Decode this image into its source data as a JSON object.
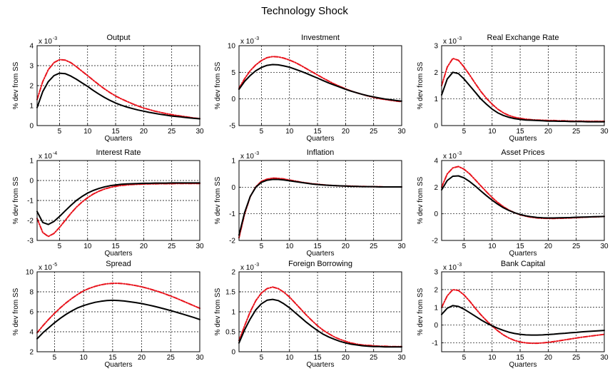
{
  "figure": {
    "title": "Technology Shock"
  },
  "series_styles": {
    "baseline": {
      "color": "#000000",
      "dash": ""
    },
    "alternative": {
      "color": "#e8121b",
      "dash": "6 2 1.5 2"
    }
  },
  "chart_data": [
    {
      "type": "line",
      "title": "Output",
      "xlabel": "Quarters",
      "ylabel": "% dev from SS",
      "exponent_base": "x 10",
      "exponent": "-3",
      "xlim": [
        1,
        30
      ],
      "ylim": [
        0,
        4
      ],
      "xticks": [
        5,
        10,
        15,
        20,
        25,
        30
      ],
      "yticks": [
        0,
        1,
        2,
        3,
        4
      ],
      "x": [
        1,
        2,
        3,
        4,
        5,
        6,
        7,
        8,
        9,
        10,
        11,
        12,
        13,
        14,
        15,
        16,
        17,
        18,
        19,
        20,
        21,
        22,
        23,
        24,
        25,
        26,
        27,
        28,
        29,
        30
      ],
      "series": [
        {
          "values": [
            0.9,
            1.7,
            2.2,
            2.5,
            2.62,
            2.6,
            2.48,
            2.32,
            2.14,
            1.96,
            1.76,
            1.58,
            1.41,
            1.26,
            1.13,
            1.02,
            0.93,
            0.85,
            0.78,
            0.72,
            0.66,
            0.61,
            0.56,
            0.52,
            0.48,
            0.45,
            0.42,
            0.39,
            0.36,
            0.34
          ]
        },
        {
          "values": [
            1.3,
            2.2,
            2.8,
            3.15,
            3.3,
            3.28,
            3.15,
            2.95,
            2.72,
            2.5,
            2.27,
            2.05,
            1.84,
            1.65,
            1.48,
            1.34,
            1.21,
            1.09,
            0.98,
            0.88,
            0.8,
            0.72,
            0.66,
            0.6,
            0.55,
            0.5,
            0.46,
            0.42,
            0.38,
            0.35
          ]
        }
      ]
    },
    {
      "type": "line",
      "title": "Investment",
      "xlabel": "Quarters",
      "ylabel": "% dev from SS",
      "exponent_base": "x 10",
      "exponent": "-3",
      "xlim": [
        1,
        30
      ],
      "ylim": [
        -5,
        10
      ],
      "xticks": [
        5,
        10,
        15,
        20,
        25,
        30
      ],
      "yticks": [
        -5,
        0,
        5,
        10
      ],
      "x": [
        1,
        2,
        3,
        4,
        5,
        6,
        7,
        8,
        9,
        10,
        11,
        12,
        13,
        14,
        15,
        16,
        17,
        18,
        19,
        20,
        21,
        22,
        23,
        24,
        25,
        26,
        27,
        28,
        29,
        30
      ],
      "series": [
        {
          "values": [
            1.8,
            3.3,
            4.4,
            5.3,
            5.9,
            6.3,
            6.45,
            6.4,
            6.2,
            5.95,
            5.6,
            5.2,
            4.8,
            4.35,
            3.9,
            3.45,
            3.0,
            2.6,
            2.2,
            1.8,
            1.45,
            1.15,
            0.85,
            0.6,
            0.38,
            0.18,
            0.0,
            -0.15,
            -0.3,
            -0.4
          ]
        },
        {
          "values": [
            2.0,
            3.8,
            5.3,
            6.4,
            7.2,
            7.75,
            7.95,
            7.9,
            7.65,
            7.3,
            6.85,
            6.3,
            5.7,
            5.1,
            4.5,
            3.9,
            3.35,
            2.8,
            2.35,
            1.9,
            1.5,
            1.15,
            0.85,
            0.55,
            0.3,
            0.08,
            -0.1,
            -0.25,
            -0.4,
            -0.5
          ]
        }
      ]
    },
    {
      "type": "line",
      "title": "Real Exchange Rate",
      "xlabel": "Quarters",
      "ylabel": "% dev from SS",
      "exponent_base": "x 10",
      "exponent": "-3",
      "xlim": [
        1,
        30
      ],
      "ylim": [
        0,
        3
      ],
      "xticks": [
        5,
        10,
        15,
        20,
        25,
        30
      ],
      "yticks": [
        0,
        1,
        2,
        3
      ],
      "x": [
        1,
        2,
        3,
        4,
        5,
        6,
        7,
        8,
        9,
        10,
        11,
        12,
        13,
        14,
        15,
        16,
        17,
        18,
        19,
        20,
        21,
        22,
        23,
        24,
        25,
        26,
        27,
        28,
        29,
        30
      ],
      "series": [
        {
          "values": [
            1.15,
            1.75,
            2.0,
            1.95,
            1.75,
            1.5,
            1.25,
            1.0,
            0.8,
            0.62,
            0.48,
            0.38,
            0.31,
            0.26,
            0.23,
            0.21,
            0.2,
            0.19,
            0.18,
            0.17,
            0.17,
            0.16,
            0.16,
            0.15,
            0.15,
            0.15,
            0.14,
            0.14,
            0.14,
            0.14
          ]
        },
        {
          "values": [
            1.5,
            2.2,
            2.52,
            2.45,
            2.2,
            1.9,
            1.58,
            1.28,
            1.02,
            0.8,
            0.62,
            0.48,
            0.38,
            0.31,
            0.27,
            0.24,
            0.22,
            0.21,
            0.2,
            0.19,
            0.19,
            0.18,
            0.18,
            0.17,
            0.17,
            0.17,
            0.16,
            0.16,
            0.16,
            0.16
          ]
        }
      ]
    },
    {
      "type": "line",
      "title": "Interest Rate",
      "xlabel": "Quarters",
      "ylabel": "% dev from SS",
      "exponent_base": "x 10",
      "exponent": "-4",
      "xlim": [
        1,
        30
      ],
      "ylim": [
        -3,
        1
      ],
      "xticks": [
        5,
        10,
        15,
        20,
        25,
        30
      ],
      "yticks": [
        -3,
        -2,
        -1,
        0,
        1
      ],
      "x": [
        1,
        2,
        3,
        4,
        5,
        6,
        7,
        8,
        9,
        10,
        11,
        12,
        13,
        14,
        15,
        16,
        17,
        18,
        19,
        20,
        21,
        22,
        23,
        24,
        25,
        26,
        27,
        28,
        29,
        30
      ],
      "series": [
        {
          "values": [
            -1.55,
            -2.1,
            -2.2,
            -2.05,
            -1.8,
            -1.52,
            -1.25,
            -1.0,
            -0.8,
            -0.63,
            -0.5,
            -0.4,
            -0.32,
            -0.26,
            -0.22,
            -0.19,
            -0.17,
            -0.16,
            -0.15,
            -0.14,
            -0.14,
            -0.13,
            -0.13,
            -0.13,
            -0.12,
            -0.12,
            -0.12,
            -0.12,
            -0.12,
            -0.12
          ]
        },
        {
          "values": [
            -1.9,
            -2.6,
            -2.8,
            -2.65,
            -2.35,
            -2.0,
            -1.65,
            -1.34,
            -1.08,
            -0.86,
            -0.68,
            -0.54,
            -0.43,
            -0.35,
            -0.29,
            -0.25,
            -0.22,
            -0.2,
            -0.19,
            -0.18,
            -0.17,
            -0.17,
            -0.16,
            -0.16,
            -0.16,
            -0.15,
            -0.15,
            -0.15,
            -0.15,
            -0.15
          ]
        }
      ]
    },
    {
      "type": "line",
      "title": "Inflation",
      "xlabel": "Quarters",
      "ylabel": "% dev from SS",
      "exponent_base": "x 10",
      "exponent": "-3",
      "xlim": [
        1,
        30
      ],
      "ylim": [
        -2,
        1
      ],
      "xticks": [
        5,
        10,
        15,
        20,
        25,
        30
      ],
      "yticks": [
        -2,
        -1,
        0,
        1
      ],
      "x": [
        1,
        2,
        3,
        4,
        5,
        6,
        7,
        8,
        9,
        10,
        11,
        12,
        13,
        14,
        15,
        16,
        17,
        18,
        19,
        20,
        21,
        22,
        23,
        24,
        25,
        26,
        27,
        28,
        29,
        30
      ],
      "series": [
        {
          "values": [
            -1.8,
            -0.95,
            -0.35,
            0.0,
            0.18,
            0.26,
            0.29,
            0.29,
            0.27,
            0.24,
            0.21,
            0.18,
            0.15,
            0.12,
            0.1,
            0.08,
            0.07,
            0.06,
            0.05,
            0.04,
            0.03,
            0.03,
            0.02,
            0.02,
            0.02,
            0.01,
            0.01,
            0.01,
            0.01,
            0.01
          ]
        },
        {
          "values": [
            -1.9,
            -1.0,
            -0.36,
            0.02,
            0.22,
            0.3,
            0.34,
            0.33,
            0.31,
            0.27,
            0.23,
            0.19,
            0.16,
            0.13,
            0.11,
            0.09,
            0.07,
            0.06,
            0.05,
            0.04,
            0.04,
            0.03,
            0.03,
            0.02,
            0.02,
            0.02,
            0.01,
            0.01,
            0.01,
            0.01
          ]
        }
      ]
    },
    {
      "type": "line",
      "title": "Asset Prices",
      "xlabel": "Quarters",
      "ylabel": "% dev from SS",
      "exponent_base": "x 10",
      "exponent": "-3",
      "xlim": [
        1,
        30
      ],
      "ylim": [
        -2,
        4
      ],
      "xticks": [
        5,
        10,
        15,
        20,
        25,
        30
      ],
      "yticks": [
        -2,
        0,
        2,
        4
      ],
      "x": [
        1,
        2,
        3,
        4,
        5,
        6,
        7,
        8,
        9,
        10,
        11,
        12,
        13,
        14,
        15,
        16,
        17,
        18,
        19,
        20,
        21,
        22,
        23,
        24,
        25,
        26,
        27,
        28,
        29,
        30
      ],
      "series": [
        {
          "values": [
            1.8,
            2.5,
            2.82,
            2.85,
            2.7,
            2.42,
            2.08,
            1.72,
            1.36,
            1.02,
            0.72,
            0.46,
            0.25,
            0.08,
            -0.05,
            -0.15,
            -0.22,
            -0.27,
            -0.3,
            -0.31,
            -0.31,
            -0.3,
            -0.29,
            -0.28,
            -0.26,
            -0.25,
            -0.24,
            -0.22,
            -0.21,
            -0.2
          ]
        },
        {
          "values": [
            2.0,
            3.0,
            3.45,
            3.55,
            3.35,
            3.0,
            2.55,
            2.1,
            1.65,
            1.22,
            0.85,
            0.54,
            0.28,
            0.08,
            -0.07,
            -0.18,
            -0.26,
            -0.31,
            -0.34,
            -0.35,
            -0.35,
            -0.34,
            -0.33,
            -0.31,
            -0.29,
            -0.27,
            -0.25,
            -0.23,
            -0.22,
            -0.2
          ]
        }
      ]
    },
    {
      "type": "line",
      "title": "Spread",
      "xlabel": "Quarters",
      "ylabel": "% dev from SS",
      "exponent_base": "x 10",
      "exponent": "-5",
      "xlim": [
        2,
        30
      ],
      "ylim": [
        2,
        10
      ],
      "xticks": [
        5,
        10,
        15,
        20,
        25,
        30
      ],
      "yticks": [
        2,
        4,
        6,
        8,
        10
      ],
      "x": [
        2,
        3,
        4,
        5,
        6,
        7,
        8,
        9,
        10,
        11,
        12,
        13,
        14,
        15,
        16,
        17,
        18,
        19,
        20,
        21,
        22,
        23,
        24,
        25,
        26,
        27,
        28,
        29,
        30
      ],
      "series": [
        {
          "values": [
            3.3,
            3.9,
            4.4,
            4.9,
            5.35,
            5.75,
            6.1,
            6.4,
            6.62,
            6.8,
            6.95,
            7.05,
            7.12,
            7.15,
            7.13,
            7.08,
            7.0,
            6.92,
            6.82,
            6.7,
            6.57,
            6.43,
            6.28,
            6.12,
            5.95,
            5.78,
            5.6,
            5.42,
            5.23
          ]
        },
        {
          "values": [
            3.9,
            4.6,
            5.25,
            5.85,
            6.4,
            6.9,
            7.35,
            7.75,
            8.1,
            8.35,
            8.55,
            8.7,
            8.8,
            8.85,
            8.85,
            8.8,
            8.72,
            8.62,
            8.5,
            8.35,
            8.18,
            8.0,
            7.8,
            7.58,
            7.35,
            7.1,
            6.85,
            6.6,
            6.35
          ]
        }
      ]
    },
    {
      "type": "line",
      "title": "Foreign Borrowing",
      "xlabel": "Quarters",
      "ylabel": "% dev from SS",
      "exponent_base": "x 10",
      "exponent": "-3",
      "xlim": [
        1,
        30
      ],
      "ylim": [
        0,
        2
      ],
      "xticks": [
        5,
        10,
        15,
        20,
        25,
        30
      ],
      "yticks": [
        0,
        0.5,
        1,
        1.5,
        2
      ],
      "x": [
        1,
        2,
        3,
        4,
        5,
        6,
        7,
        8,
        9,
        10,
        11,
        12,
        13,
        14,
        15,
        16,
        17,
        18,
        19,
        20,
        21,
        22,
        23,
        24,
        25,
        26,
        27,
        28,
        29,
        30
      ],
      "series": [
        {
          "values": [
            0.22,
            0.55,
            0.82,
            1.05,
            1.2,
            1.29,
            1.31,
            1.28,
            1.2,
            1.1,
            0.98,
            0.86,
            0.74,
            0.63,
            0.53,
            0.44,
            0.37,
            0.31,
            0.26,
            0.22,
            0.19,
            0.17,
            0.15,
            0.14,
            0.13,
            0.13,
            0.12,
            0.12,
            0.12,
            0.12
          ]
        },
        {
          "values": [
            0.28,
            0.65,
            1.0,
            1.28,
            1.47,
            1.58,
            1.62,
            1.58,
            1.49,
            1.37,
            1.22,
            1.07,
            0.92,
            0.78,
            0.65,
            0.54,
            0.45,
            0.37,
            0.31,
            0.26,
            0.22,
            0.19,
            0.17,
            0.16,
            0.15,
            0.14,
            0.14,
            0.13,
            0.13,
            0.13
          ]
        }
      ]
    },
    {
      "type": "line",
      "title": "Bank Capital",
      "xlabel": "Quarters",
      "ylabel": "% dev from SS",
      "exponent_base": "x 10",
      "exponent": "-3",
      "xlim": [
        1,
        30
      ],
      "ylim": [
        -1.5,
        3
      ],
      "xticks": [
        5,
        10,
        15,
        20,
        25,
        30
      ],
      "yticks": [
        -1,
        0,
        1,
        2,
        3
      ],
      "x": [
        1,
        2,
        3,
        4,
        5,
        6,
        7,
        8,
        9,
        10,
        11,
        12,
        13,
        14,
        15,
        16,
        17,
        18,
        19,
        20,
        21,
        22,
        23,
        24,
        25,
        26,
        27,
        28,
        29,
        30
      ],
      "series": [
        {
          "values": [
            0.6,
            0.95,
            1.1,
            1.05,
            0.9,
            0.7,
            0.5,
            0.3,
            0.12,
            -0.04,
            -0.18,
            -0.3,
            -0.4,
            -0.47,
            -0.52,
            -0.55,
            -0.56,
            -0.56,
            -0.55,
            -0.53,
            -0.51,
            -0.48,
            -0.46,
            -0.43,
            -0.41,
            -0.38,
            -0.36,
            -0.34,
            -0.32,
            -0.3
          ]
        },
        {
          "values": [
            1.0,
            1.65,
            2.0,
            1.95,
            1.7,
            1.35,
            0.95,
            0.58,
            0.25,
            -0.05,
            -0.32,
            -0.55,
            -0.73,
            -0.86,
            -0.95,
            -1.0,
            -1.02,
            -1.02,
            -1.0,
            -0.97,
            -0.93,
            -0.88,
            -0.83,
            -0.78,
            -0.73,
            -0.68,
            -0.64,
            -0.6,
            -0.56,
            -0.52
          ]
        }
      ]
    }
  ]
}
